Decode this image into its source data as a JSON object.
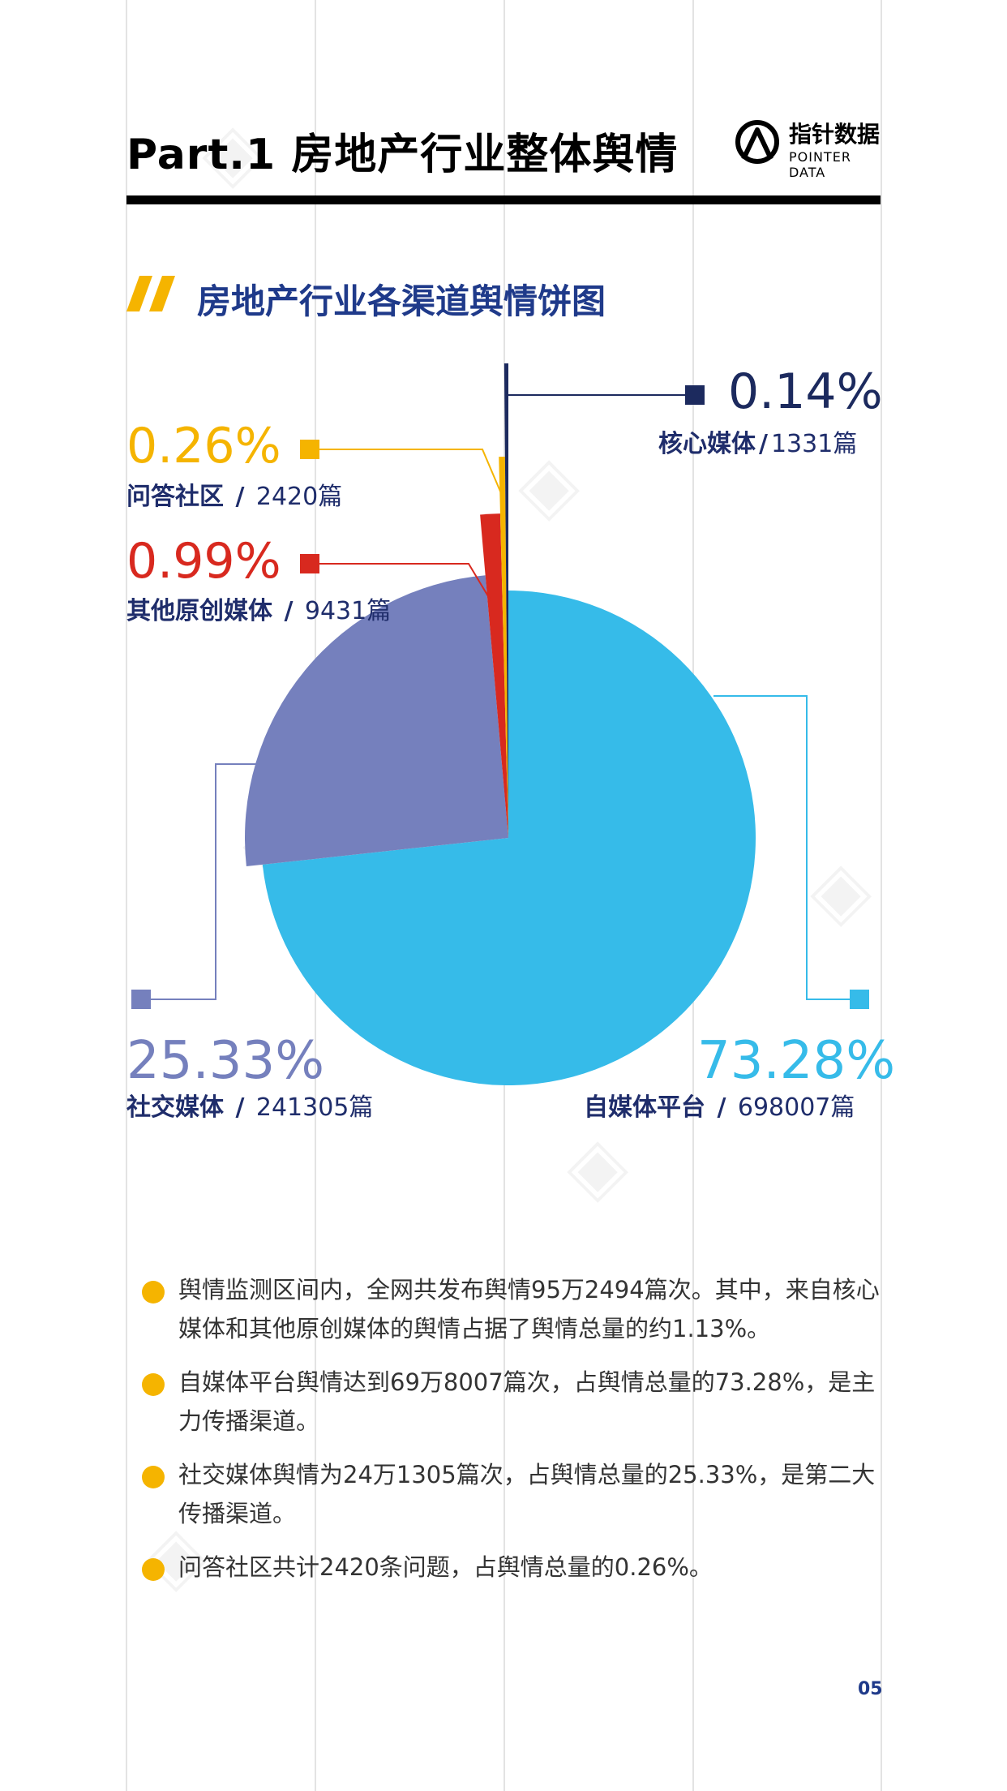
{
  "header": {
    "title": "Part.1  房地产行业整体舆情",
    "logo_cn": "指针数据",
    "logo_en": "POINTER DATA"
  },
  "section": {
    "title": "房地产行业各渠道舆情饼图"
  },
  "colors": {
    "core_media": "#1c2a5e",
    "qa_community": "#f5b400",
    "other_original": "#d8291f",
    "social_media": "#7580bd",
    "self_media": "#36bbe9",
    "accent": "#f5b400",
    "title_blue": "#1f3a8a"
  },
  "chart_data": {
    "type": "pie",
    "title": "房地产行业各渠道舆情饼图",
    "slices": [
      {
        "name": "核心媒体",
        "percent": 0.14,
        "percent_label": "0.14%",
        "count": 1331,
        "count_label": "1331篇",
        "sep": "/"
      },
      {
        "name": "问答社区",
        "percent": 0.26,
        "percent_label": "0.26%",
        "count": 2420,
        "count_label": "2420篇",
        "sep": " / "
      },
      {
        "name": "其他原创媒体",
        "percent": 0.99,
        "percent_label": "0.99%",
        "count": 9431,
        "count_label": "9431篇",
        "sep": " / "
      },
      {
        "name": "社交媒体",
        "percent": 25.33,
        "percent_label": "25.33%",
        "count": 241305,
        "count_label": "241305篇",
        "sep": " / "
      },
      {
        "name": "自媒体平台",
        "percent": 73.28,
        "percent_label": "73.28%",
        "count": 698007,
        "count_label": "698007篇",
        "sep": " / "
      }
    ]
  },
  "bullets": [
    "舆情监测区间内，全网共发布舆情95万2494篇次。其中，来自核心媒体和其他原创媒体的舆情占据了舆情总量的约1.13%。",
    "自媒体平台舆情达到69万8007篇次，占舆情总量的73.28%，是主力传播渠道。",
    "社交媒体舆情为24万1305篇次，占舆情总量的25.33%，是第二大传播渠道。",
    "问答社区共计2420条问题，占舆情总量的0.26%。"
  ],
  "footer": {
    "page_number": "05"
  }
}
